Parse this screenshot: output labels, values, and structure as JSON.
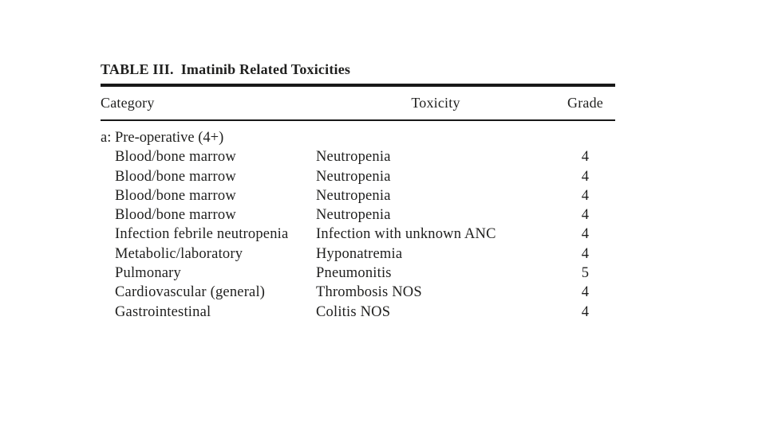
{
  "page": {
    "background": "#ffffff"
  },
  "table": {
    "title_label": "TABLE III.",
    "title_text": "Imatinib Related Toxicities",
    "headers": {
      "category": "Category",
      "toxicity": "Toxicity",
      "grade": "Grade"
    },
    "section_header": "a: Pre-operative (4+)",
    "rows": [
      {
        "category": "Blood/bone marrow",
        "toxicity": "Neutropenia",
        "grade": "4"
      },
      {
        "category": "Blood/bone marrow",
        "toxicity": "Neutropenia",
        "grade": "4"
      },
      {
        "category": "Blood/bone marrow",
        "toxicity": "Neutropenia",
        "grade": "4"
      },
      {
        "category": "Blood/bone marrow",
        "toxicity": "Neutropenia",
        "grade": "4"
      },
      {
        "category": "Infection febrile neutropenia",
        "toxicity": "Infection with unknown ANC",
        "grade": "4"
      },
      {
        "category": "Metabolic/laboratory",
        "toxicity": "Hyponatremia",
        "grade": "4"
      },
      {
        "category": "Pulmonary",
        "toxicity": "Pneumonitis",
        "grade": "5"
      },
      {
        "category": "Cardiovascular (general)",
        "toxicity": "Thrombosis NOS",
        "grade": "4"
      },
      {
        "category": "Gastrointestinal",
        "toxicity": "Colitis NOS",
        "grade": "4"
      }
    ],
    "colors": {
      "text": "#1f1f1e",
      "rule": "#181818"
    }
  }
}
